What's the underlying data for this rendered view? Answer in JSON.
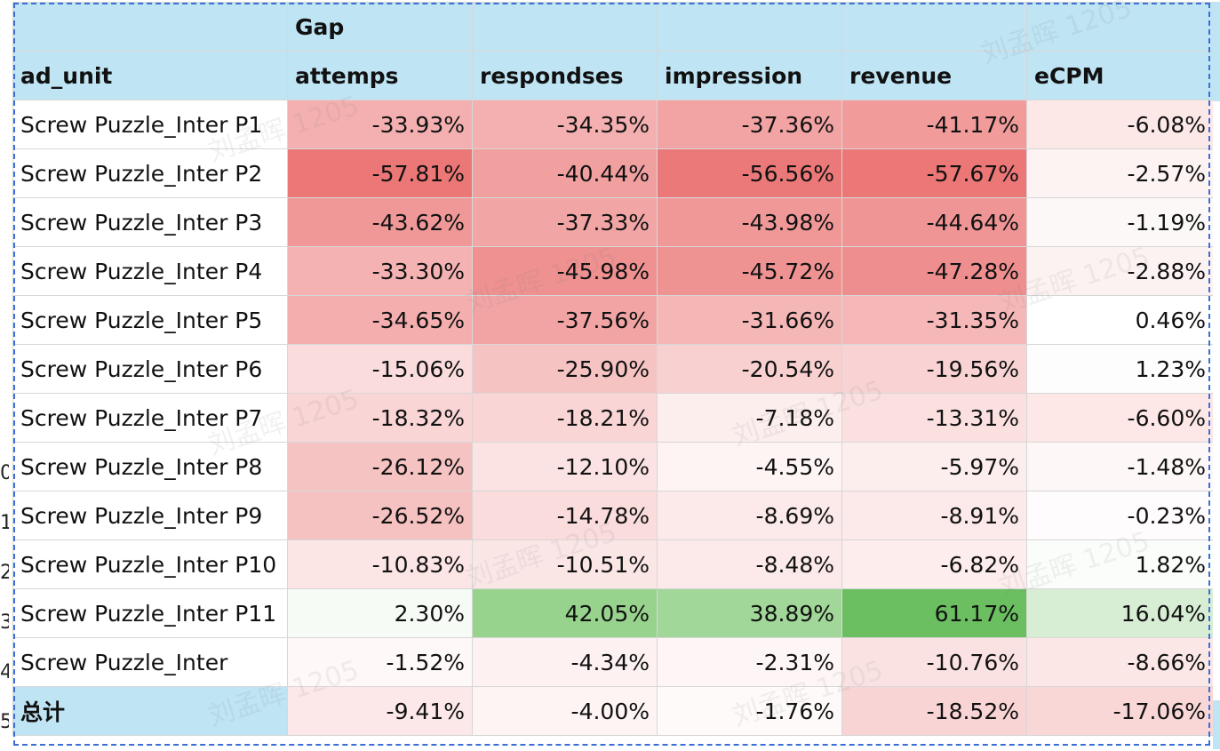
{
  "sheet": {
    "group_header": "Gap",
    "columns": [
      "ad_unit",
      "attemps",
      "respondses",
      "impression",
      "revenue",
      "eCPM"
    ],
    "rows": [
      {
        "name": "Screw Puzzle_Inter P1",
        "values": [
          "-33.93%",
          "-34.35%",
          "-37.36%",
          "-41.17%",
          "-6.08%"
        ],
        "colors": [
          "#f4b0b0",
          "#f4b0b0",
          "#f2a4a4",
          "#f19b9b",
          "#fde8e8"
        ]
      },
      {
        "name": "Screw Puzzle_Inter P2",
        "values": [
          "-57.81%",
          "-40.44%",
          "-56.56%",
          "-57.67%",
          "-2.57%"
        ],
        "colors": [
          "#ec7777",
          "#f1a0a0",
          "#ec7979",
          "#ec7777",
          "#fdf3f3"
        ]
      },
      {
        "name": "Screw Puzzle_Inter P3",
        "values": [
          "-43.62%",
          "-37.33%",
          "-43.98%",
          "-44.64%",
          "-1.19%"
        ],
        "colors": [
          "#f09898",
          "#f2a5a5",
          "#f09898",
          "#f09595",
          "#fdf8f8"
        ]
      },
      {
        "name": "Screw Puzzle_Inter P4",
        "values": [
          "-33.30%",
          "-45.98%",
          "-45.72%",
          "-47.28%",
          "-2.88%"
        ],
        "colors": [
          "#f4b2b2",
          "#ef9191",
          "#ef9292",
          "#ef8e8e",
          "#fdf2f2"
        ]
      },
      {
        "name": "Screw Puzzle_Inter P5",
        "values": [
          "-34.65%",
          "-37.56%",
          "-31.66%",
          "-31.35%",
          "0.46%"
        ],
        "colors": [
          "#f4aeae",
          "#f2a4a4",
          "#f5b6b6",
          "#f5b7b7",
          "#ffffff"
        ]
      },
      {
        "name": "Screw Puzzle_Inter P6",
        "values": [
          "-15.06%",
          "-25.90%",
          "-20.54%",
          "-19.56%",
          "1.23%"
        ],
        "colors": [
          "#fadcdc",
          "#f6c3c3",
          "#f8d0d0",
          "#f9d3d3",
          "#fcfdfc"
        ]
      },
      {
        "name": "Screw Puzzle_Inter P7",
        "values": [
          "-18.32%",
          "-18.21%",
          "-7.18%",
          "-13.31%",
          "-6.60%"
        ],
        "colors": [
          "#f9d5d5",
          "#f9d5d5",
          "#fdeeee",
          "#fbe0e0",
          "#fde7e7"
        ]
      },
      {
        "name": "Screw Puzzle_Inter P8",
        "values": [
          "-26.12%",
          "-12.10%",
          "-4.55%",
          "-5.97%",
          "-1.48%"
        ],
        "colors": [
          "#f6c3c3",
          "#fbe3e3",
          "#fef4f4",
          "#fdeeee",
          "#fdf7f7"
        ]
      },
      {
        "name": "Screw Puzzle_Inter P9",
        "values": [
          "-26.52%",
          "-14.78%",
          "-8.69%",
          "-8.91%",
          "-0.23%"
        ],
        "colors": [
          "#f6c1c1",
          "#fadcdc",
          "#fceaea",
          "#fce9e9",
          "#fefcfc"
        ]
      },
      {
        "name": "Screw Puzzle_Inter P10",
        "values": [
          "-10.83%",
          "-10.51%",
          "-8.48%",
          "-6.82%",
          "1.82%"
        ],
        "colors": [
          "#fbe5e5",
          "#fbe6e6",
          "#fceaea",
          "#fdeded",
          "#fbfdfb"
        ]
      },
      {
        "name": "Screw Puzzle_Inter P11",
        "values": [
          "2.30%",
          "42.05%",
          "38.89%",
          "61.17%",
          "16.04%"
        ],
        "colors": [
          "#f6fbf5",
          "#98d38e",
          "#a1d798",
          "#6bbf61",
          "#d8eed4"
        ]
      },
      {
        "name": "Screw Puzzle_Inter",
        "values": [
          "-1.52%",
          "-4.34%",
          "-2.31%",
          "-10.76%",
          "-8.66%"
        ],
        "colors": [
          "#fef8f8",
          "#fdf1f1",
          "#fef6f6",
          "#fbe2e2",
          "#fce7e7"
        ]
      }
    ],
    "total": {
      "name": "总计",
      "values": [
        "-9.41%",
        "-4.00%",
        "-1.76%",
        "-18.52%",
        "-17.06%"
      ],
      "colors": [
        "#fce8e8",
        "#fef4f4",
        "#fefafa",
        "#f9d4d4",
        "#f9d7d7"
      ]
    },
    "row_numbers": [
      "",
      "",
      "",
      "",
      "",
      "",
      "",
      "",
      "",
      "0",
      "1",
      "2",
      "3",
      "4",
      "5"
    ],
    "watermark": "刘孟晖 1205"
  }
}
